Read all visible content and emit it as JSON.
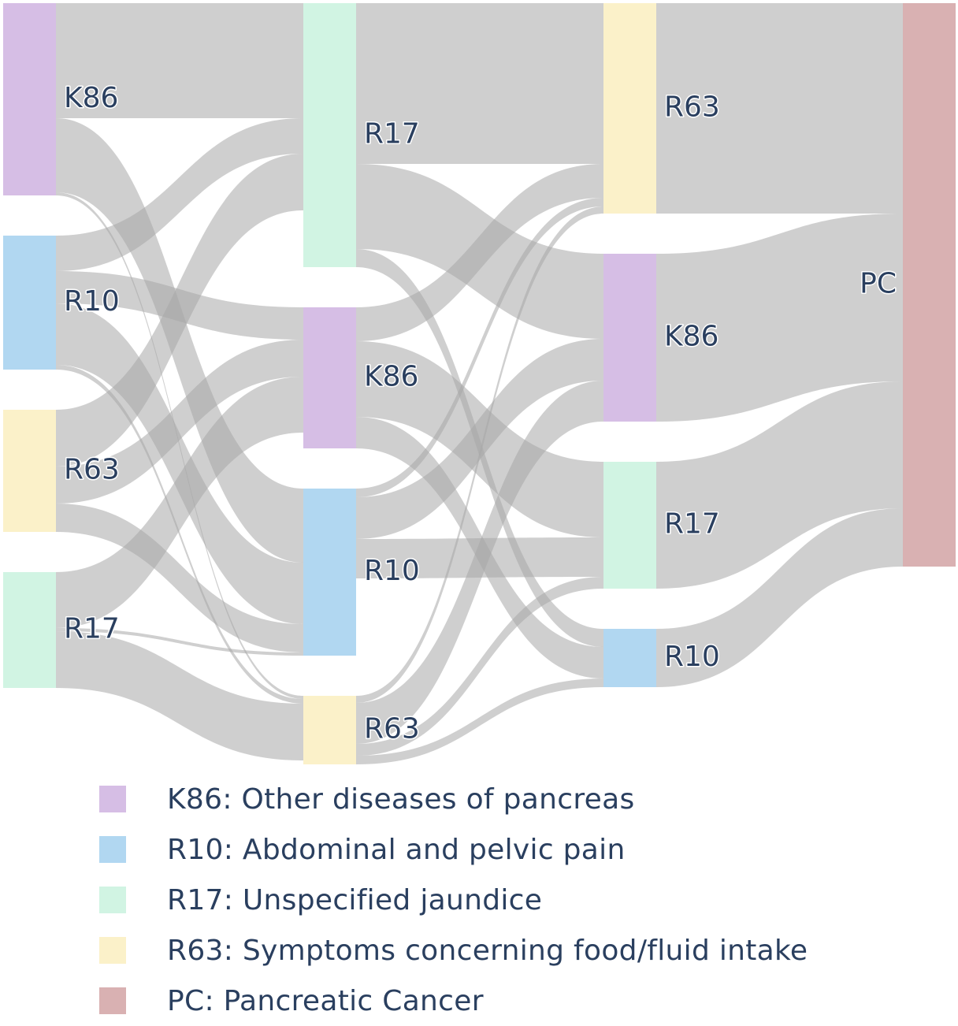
{
  "chart_data": {
    "type": "sankey",
    "colors": {
      "K86": "#d6bee5",
      "R10": "#b1d7f1",
      "R17": "#d1f4e3",
      "R63": "#fbf1c9",
      "PC": "#d9b1b2",
      "link": "#a8a8a8"
    },
    "columns": [
      [
        {
          "id": "K86",
          "label": "K86"
        },
        {
          "id": "R10",
          "label": "R10"
        },
        {
          "id": "R63",
          "label": "R63"
        },
        {
          "id": "R17",
          "label": "R17"
        }
      ],
      [
        {
          "id": "R17",
          "label": "R17"
        },
        {
          "id": "K86",
          "label": "K86"
        },
        {
          "id": "R10",
          "label": "R10"
        },
        {
          "id": "R63",
          "label": "R63"
        }
      ],
      [
        {
          "id": "R63",
          "label": "R63"
        },
        {
          "id": "K86",
          "label": "K86"
        },
        {
          "id": "R17",
          "label": "R17"
        },
        {
          "id": "R10",
          "label": "R10"
        }
      ],
      [
        {
          "id": "PC",
          "label": "PC"
        }
      ]
    ],
    "links": [
      {
        "from": [
          0,
          "K86"
        ],
        "to": [
          1,
          "R17"
        ],
        "value": 146
      },
      {
        "from": [
          0,
          "K86"
        ],
        "to": [
          1,
          "R10"
        ],
        "value": 94
      },
      {
        "from": [
          0,
          "K86"
        ],
        "to": [
          1,
          "R63"
        ],
        "value": 4
      },
      {
        "from": [
          0,
          "R10"
        ],
        "to": [
          1,
          "R17"
        ],
        "value": 45
      },
      {
        "from": [
          0,
          "R10"
        ],
        "to": [
          1,
          "K86"
        ],
        "value": 41
      },
      {
        "from": [
          0,
          "R10"
        ],
        "to": [
          1,
          "R10"
        ],
        "value": 78
      },
      {
        "from": [
          0,
          "R10"
        ],
        "to": [
          1,
          "R63"
        ],
        "value": 6
      },
      {
        "from": [
          0,
          "R63"
        ],
        "to": [
          1,
          "R17"
        ],
        "value": 72
      },
      {
        "from": [
          0,
          "R63"
        ],
        "to": [
          1,
          "K86"
        ],
        "value": 47
      },
      {
        "from": [
          0,
          "R63"
        ],
        "to": [
          1,
          "R10"
        ],
        "value": 36
      },
      {
        "from": [
          0,
          "R17"
        ],
        "to": [
          1,
          "K86"
        ],
        "value": 71
      },
      {
        "from": [
          0,
          "R17"
        ],
        "to": [
          1,
          "R10"
        ],
        "value": 4
      },
      {
        "from": [
          0,
          "R17"
        ],
        "to": [
          1,
          "R63"
        ],
        "value": 72
      },
      {
        "from": [
          1,
          "R17"
        ],
        "to": [
          2,
          "R63"
        ],
        "value": 204
      },
      {
        "from": [
          1,
          "R17"
        ],
        "to": [
          2,
          "K86"
        ],
        "value": 108
      },
      {
        "from": [
          1,
          "R17"
        ],
        "to": [
          2,
          "R10"
        ],
        "value": 23
      },
      {
        "from": [
          1,
          "K86"
        ],
        "to": [
          2,
          "R63"
        ],
        "value": 43
      },
      {
        "from": [
          1,
          "K86"
        ],
        "to": [
          2,
          "R17"
        ],
        "value": 96
      },
      {
        "from": [
          1,
          "K86"
        ],
        "to": [
          2,
          "R10"
        ],
        "value": 40
      },
      {
        "from": [
          1,
          "R10"
        ],
        "to": [
          2,
          "R63"
        ],
        "value": 11
      },
      {
        "from": [
          1,
          "R10"
        ],
        "to": [
          2,
          "K86"
        ],
        "value": 53
      },
      {
        "from": [
          1,
          "R10"
        ],
        "to": [
          2,
          "R17"
        ],
        "value": 50
      },
      {
        "from": [
          1,
          "R63"
        ],
        "to": [
          2,
          "R63"
        ],
        "value": 9
      },
      {
        "from": [
          1,
          "R63"
        ],
        "to": [
          2,
          "K86"
        ],
        "value": 52
      },
      {
        "from": [
          1,
          "R63"
        ],
        "to": [
          2,
          "R17"
        ],
        "value": 15
      },
      {
        "from": [
          1,
          "R63"
        ],
        "to": [
          2,
          "R10"
        ],
        "value": 11
      },
      {
        "from": [
          2,
          "R63"
        ],
        "to": [
          3,
          "PC"
        ],
        "value": 267
      },
      {
        "from": [
          2,
          "K86"
        ],
        "to": [
          3,
          "PC"
        ],
        "value": 213
      },
      {
        "from": [
          2,
          "R17"
        ],
        "to": [
          3,
          "PC"
        ],
        "value": 161
      },
      {
        "from": [
          2,
          "R10"
        ],
        "to": [
          3,
          "PC"
        ],
        "value": 74
      }
    ]
  },
  "legend": {
    "items": [
      {
        "text": "K86: Other diseases of pancreas",
        "color": "#d6bee5"
      },
      {
        "text": "R10: Abdominal and pelvic pain",
        "color": "#b1d7f1"
      },
      {
        "text": "R17: Unspecified jaundice",
        "color": "#d1f4e3"
      },
      {
        "text": "R63: Symptoms concerning food/fluid intake",
        "color": "#fbf1c9"
      },
      {
        "text": "PC: Pancreatic Cancer",
        "color": "#d9b1b2"
      }
    ]
  }
}
